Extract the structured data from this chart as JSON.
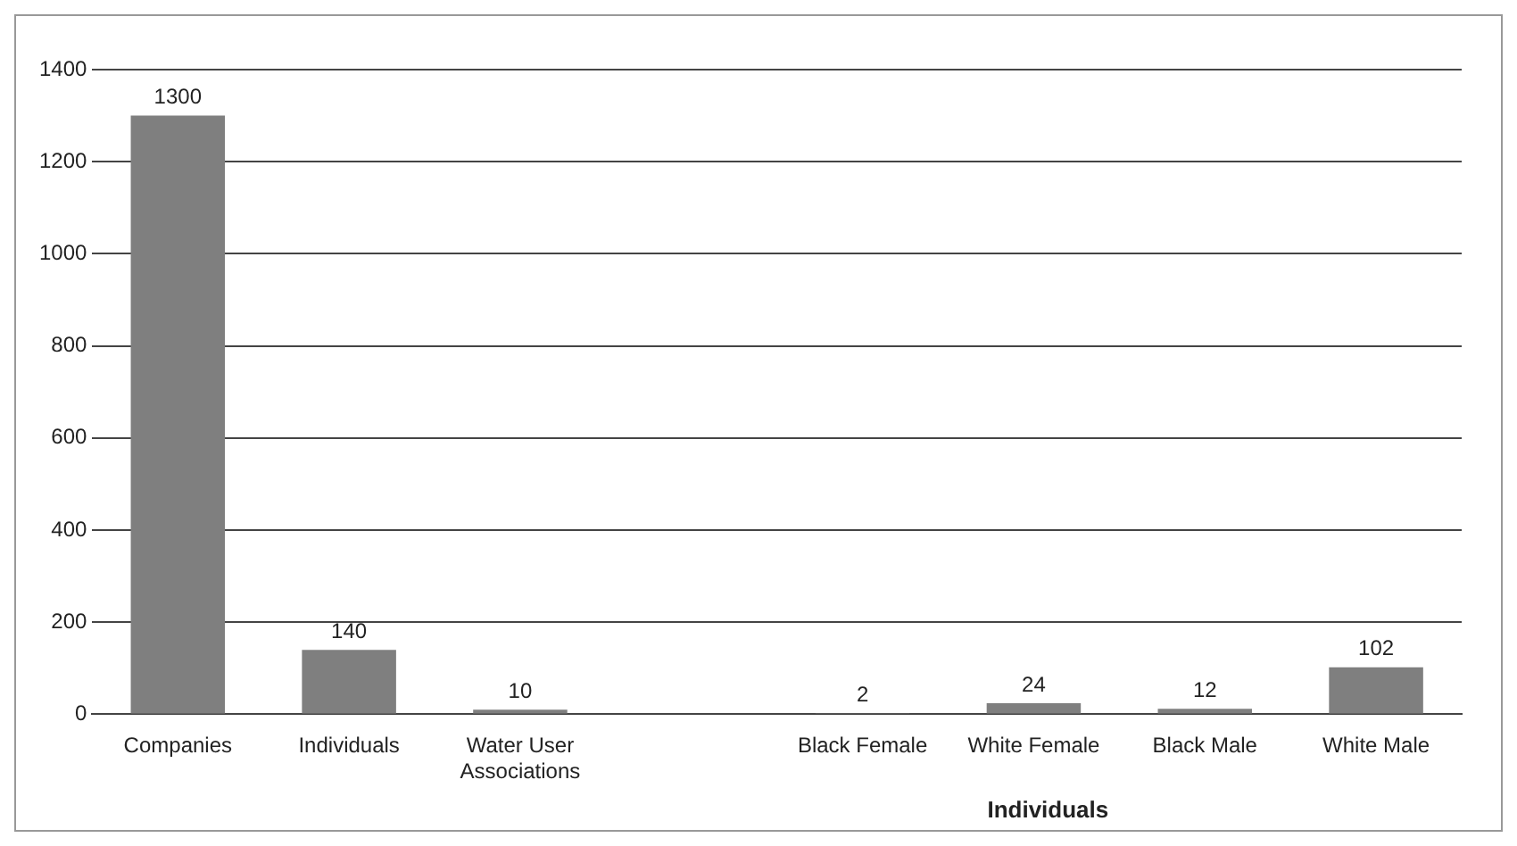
{
  "chart_data": {
    "type": "bar",
    "xlabel": "Individuals",
    "categories": [
      "Companies",
      "Individuals",
      "Water User Associations",
      null,
      "Black Female",
      "White Female",
      "Black Male",
      "White Male"
    ],
    "values": [
      1300,
      140,
      10,
      null,
      2,
      24,
      12,
      102
    ],
    "color": "#7f7f7f",
    "ylim": [
      0,
      1400
    ],
    "yticks": [
      0,
      200,
      400,
      600,
      800,
      1000,
      1200,
      1400
    ],
    "grid": "y",
    "data_labels": true,
    "legend": false
  }
}
